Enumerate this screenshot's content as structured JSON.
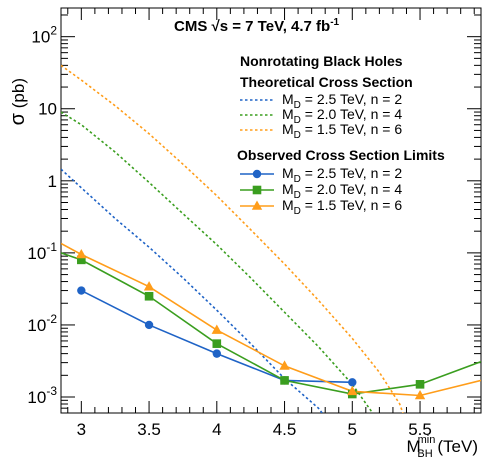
{
  "chart_data": {
    "type": "line",
    "title": "CMS √s = 7 TeV, 4.7 fb⁻¹",
    "title_parts": {
      "main": "CMS ",
      "sqrt": "√",
      "s_eq": "s = 7 TeV, 4.7 fb",
      "sup": "-1"
    },
    "xlabel": {
      "main": "M",
      "sub": "BH",
      "sup": "min",
      "unit": " (TeV)"
    },
    "ylabel": {
      "main": "σ",
      "unit": " (pb)"
    },
    "xlim": [
      2.85,
      5.95
    ],
    "ylim": [
      0.0006,
      250
    ],
    "y_log": true,
    "grid": false,
    "x_ticks": [
      "3",
      "3.5",
      "4",
      "4.5",
      "5",
      "5.5"
    ],
    "y_ticks": [
      {
        "value": 0.001,
        "base": "10",
        "exp": "-3"
      },
      {
        "value": 0.01,
        "base": "10",
        "exp": "-2"
      },
      {
        "value": 0.1,
        "base": "10",
        "exp": "-1"
      },
      {
        "value": 1,
        "base": "1",
        "exp": ""
      },
      {
        "value": 10,
        "base": "10",
        "exp": ""
      },
      {
        "value": 100,
        "base": "10",
        "exp": "2"
      }
    ],
    "legend": {
      "placement": "top-right",
      "header": "Nonrotating Black Holes",
      "theory_title": "Theoretical Cross Section",
      "observed_title": "Observed Cross Section Limits"
    },
    "colors": {
      "blue": "#1f63c6",
      "green": "#3a9e1f",
      "orange": "#ff9d1a"
    },
    "theory_series": [
      {
        "name_parts": {
          "pre": "M",
          "sub": "D",
          "post": " = 2.5 TeV, n = 2"
        },
        "color": "#1f63c6",
        "x": [
          2.85,
          3.0,
          3.25,
          3.5,
          3.75,
          4.0,
          4.25,
          4.5,
          4.75,
          4.9
        ],
        "values": [
          1.45,
          0.8,
          0.3,
          0.12,
          0.045,
          0.016,
          0.0055,
          0.0018,
          0.0007,
          0.0003
        ]
      },
      {
        "name_parts": {
          "pre": "M",
          "sub": "D",
          "post": " = 2.0 TeV, n = 4"
        },
        "color": "#3a9e1f",
        "x": [
          2.85,
          3.0,
          3.25,
          3.5,
          3.75,
          4.0,
          4.25,
          4.5,
          4.75,
          5.0,
          5.15,
          5.22
        ],
        "values": [
          9,
          6,
          2.5,
          0.95,
          0.35,
          0.13,
          0.045,
          0.015,
          0.005,
          0.0015,
          0.0006,
          0.0003
        ]
      },
      {
        "name_parts": {
          "pre": "M",
          "sub": "D",
          "post": " = 1.5 TeV, n = 6"
        },
        "color": "#ff9d1a",
        "x": [
          2.85,
          3.0,
          3.25,
          3.5,
          3.75,
          4.0,
          4.25,
          4.5,
          4.75,
          5.0,
          5.2,
          5.35,
          5.43
        ],
        "values": [
          40,
          25,
          11,
          4.5,
          1.7,
          0.62,
          0.21,
          0.07,
          0.022,
          0.0065,
          0.0022,
          0.0008,
          0.0003
        ]
      }
    ],
    "observed_series": [
      {
        "name_parts": {
          "pre": "M",
          "sub": "D",
          "post": " = 2.5 TeV, n = 2"
        },
        "color": "#1f63c6",
        "marker": "circle",
        "x": [
          3.0,
          3.5,
          4.0,
          4.5,
          5.0
        ],
        "values": [
          0.03,
          0.01,
          0.004,
          0.0017,
          0.0016
        ]
      },
      {
        "name_parts": {
          "pre": "M",
          "sub": "D",
          "post": " = 2.0 TeV, n = 4"
        },
        "color": "#3a9e1f",
        "marker": "square",
        "x": [
          2.85,
          3.0,
          3.5,
          4.0,
          4.5,
          5.0,
          5.5,
          5.95
        ],
        "values": [
          0.1,
          0.08,
          0.025,
          0.0055,
          0.0017,
          0.0011,
          0.0015,
          0.0031
        ],
        "marker_x": [
          3.0,
          3.5,
          4.0,
          4.5,
          5.0,
          5.5
        ]
      },
      {
        "name_parts": {
          "pre": "M",
          "sub": "D",
          "post": " = 1.5 TeV, n = 6"
        },
        "color": "#ff9d1a",
        "marker": "triangle",
        "x": [
          2.85,
          3.0,
          3.5,
          4.0,
          4.5,
          5.0,
          5.5,
          5.95
        ],
        "values": [
          0.135,
          0.095,
          0.034,
          0.0085,
          0.0027,
          0.0012,
          0.00105,
          0.0017
        ],
        "marker_x": [
          3.0,
          3.5,
          4.0,
          4.5,
          5.0,
          5.5
        ]
      }
    ]
  }
}
